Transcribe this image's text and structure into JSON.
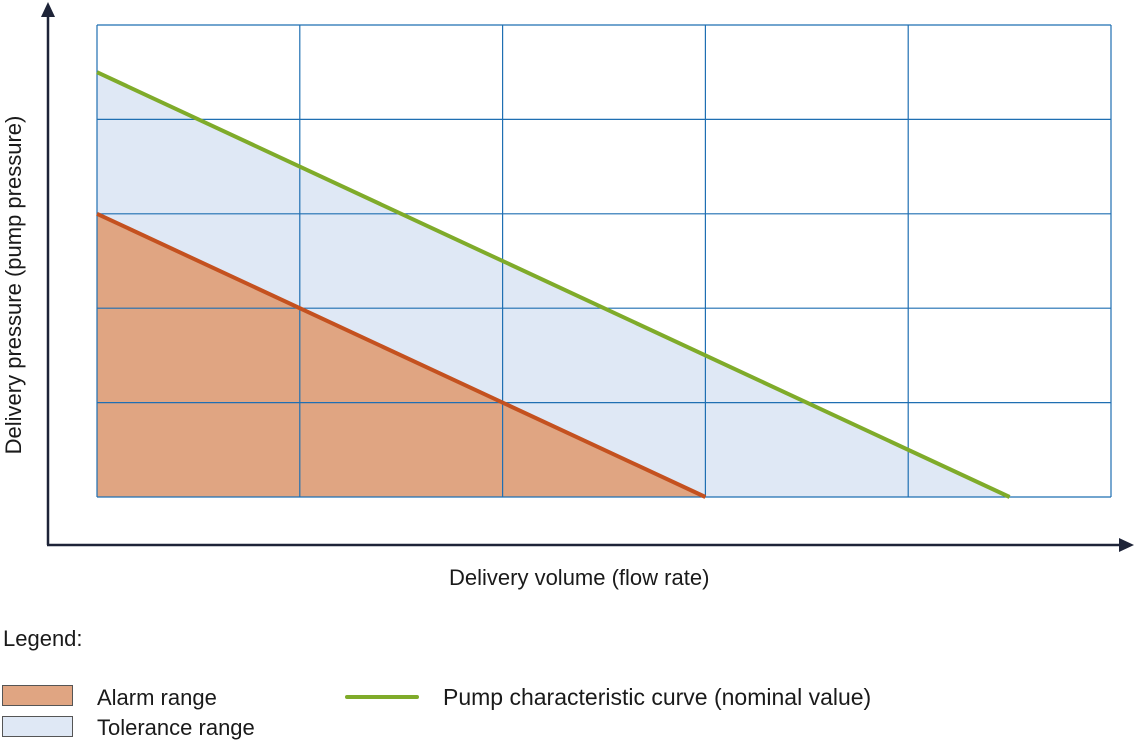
{
  "chart_data": {
    "type": "area",
    "xlabel": "Delivery volume (flow rate)",
    "ylabel": "Delivery pressure (pump pressure)",
    "xlim": [
      0,
      5
    ],
    "ylim": [
      0,
      5
    ],
    "grid": true,
    "x_gridlines": [
      0,
      1,
      2,
      3,
      4,
      5
    ],
    "y_gridlines": [
      0,
      1,
      2,
      3,
      4,
      5
    ],
    "series": [
      {
        "name": "Pump characteristic curve (nominal value)",
        "kind": "line",
        "color": "#7fab2a",
        "points": [
          [
            0,
            4.5
          ],
          [
            4.5,
            0
          ]
        ]
      },
      {
        "name": "Alarm range",
        "kind": "area",
        "color": "#e0a582",
        "edge_color": "#c4511f",
        "points": [
          [
            0,
            3
          ],
          [
            3,
            0
          ]
        ]
      },
      {
        "name": "Tolerance range",
        "kind": "area",
        "color": "#dfe8f5",
        "points": [
          [
            0,
            4.5
          ],
          [
            4.5,
            0
          ]
        ]
      }
    ],
    "legend": {
      "title": "Legend:",
      "placement": "bottom",
      "entries": [
        "Alarm range",
        "Tolerance range",
        "Pump characteristic curve (nominal value)"
      ]
    }
  },
  "colors": {
    "grid": "#1f6fb2",
    "axis": "#1e2438"
  }
}
